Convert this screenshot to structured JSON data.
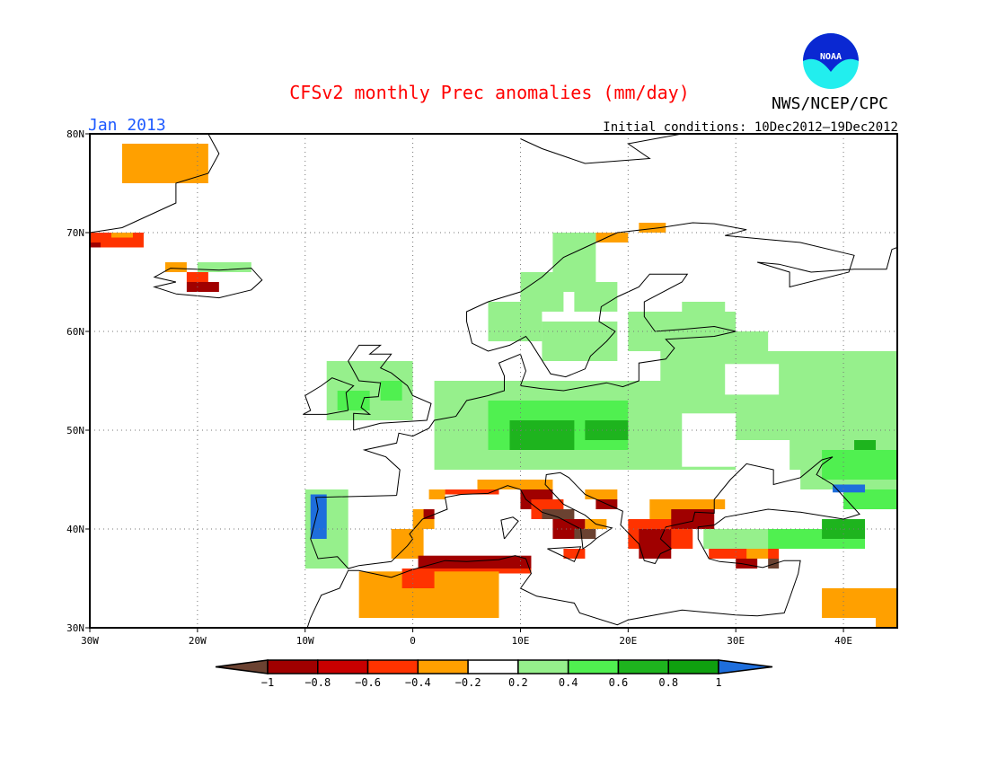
{
  "title": "CFSv2 monthly Prec anomalies (mm/day)",
  "month": "Jan 2013",
  "initial_conditions": "Initial conditions: 10Dec2012–19Dec2012",
  "agency": "NWS/NCEP/CPC",
  "logo_text": "NOAA",
  "colors": {
    "title": "#ff0000",
    "month": "#1e5aff"
  },
  "chart_data": {
    "type": "heatmap",
    "projection": "lat-lon",
    "lon_range": [
      -30,
      45
    ],
    "lat_range": [
      30,
      80
    ],
    "lat_ticks": [
      {
        "v": 80,
        "label": "80N"
      },
      {
        "v": 70,
        "label": "70N"
      },
      {
        "v": 60,
        "label": "60N"
      },
      {
        "v": 50,
        "label": "50N"
      },
      {
        "v": 40,
        "label": "40N"
      },
      {
        "v": 30,
        "label": "30N"
      }
    ],
    "lon_ticks": [
      {
        "v": -30,
        "label": "30W"
      },
      {
        "v": -20,
        "label": "20W"
      },
      {
        "v": -10,
        "label": "10W"
      },
      {
        "v": 0,
        "label": "0"
      },
      {
        "v": 10,
        "label": "10E"
      },
      {
        "v": 20,
        "label": "20E"
      },
      {
        "v": 30,
        "label": "30E"
      },
      {
        "v": 40,
        "label": "40E"
      }
    ],
    "colorbar": {
      "colors": [
        "#6b4231",
        "#a00000",
        "#c80000",
        "#ff3300",
        "#ffa000",
        "#ffffff",
        "#96f08c",
        "#50f050",
        "#1eb41e",
        "#0fa00f",
        "#1e6edc"
      ],
      "labels": [
        "−1",
        "−0.8",
        "−0.6",
        "−0.4",
        "−0.2",
        "0.2",
        "0.4",
        "0.6",
        "0.8",
        "1"
      ]
    },
    "patches_note": "each patch: [lon_min, lat_min, lon_max, lat_max, color_index]",
    "patches": [
      [
        -27,
        75,
        -19,
        79,
        4
      ],
      [
        -25,
        77,
        -22,
        78,
        4
      ],
      [
        -30,
        68.5,
        -25,
        70,
        3
      ],
      [
        -30,
        68.5,
        -29,
        69,
        1
      ],
      [
        -28,
        69.5,
        -26,
        70,
        4
      ],
      [
        -23,
        66,
        -21,
        67,
        4
      ],
      [
        -21,
        65,
        -19,
        66,
        3
      ],
      [
        -21,
        64,
        -18,
        65,
        1
      ],
      [
        -20,
        66,
        -15,
        67,
        6
      ],
      [
        17,
        69,
        20,
        70,
        4
      ],
      [
        21,
        70,
        23.5,
        71,
        4
      ],
      [
        7,
        59,
        12,
        63,
        6
      ],
      [
        10,
        62,
        14,
        66,
        6
      ],
      [
        13,
        64,
        17,
        70,
        6
      ],
      [
        15,
        62,
        19,
        65,
        6
      ],
      [
        12,
        57,
        19,
        61,
        6
      ],
      [
        20,
        58,
        30,
        62,
        6
      ],
      [
        25,
        62,
        29,
        63,
        6
      ],
      [
        23,
        55,
        45,
        58,
        6
      ],
      [
        25,
        58,
        33,
        60,
        6
      ],
      [
        23,
        46,
        45,
        55,
        6
      ],
      [
        29,
        53.6,
        34,
        56.7,
        5
      ],
      [
        24,
        46.3,
        30,
        51.7,
        5
      ],
      [
        30,
        46,
        35,
        49,
        5
      ],
      [
        2,
        46,
        25,
        55,
        6
      ],
      [
        7,
        48,
        20,
        53,
        7
      ],
      [
        9,
        48,
        15,
        51,
        8
      ],
      [
        16,
        49,
        20,
        51,
        8
      ],
      [
        -8,
        51,
        0,
        57,
        6
      ],
      [
        -7,
        52,
        -4,
        54,
        7
      ],
      [
        -3,
        53,
        -1,
        55,
        7
      ],
      [
        -10,
        36,
        -6,
        44,
        6
      ],
      [
        -9,
        40,
        -8,
        43,
        7
      ],
      [
        -9.5,
        39,
        -8,
        43.5,
        10
      ],
      [
        36,
        44,
        45,
        50,
        6
      ],
      [
        38,
        45,
        45,
        48,
        7
      ],
      [
        41,
        48,
        43,
        49,
        8
      ],
      [
        27,
        38,
        38,
        40,
        6
      ],
      [
        33,
        38,
        42,
        40,
        7
      ],
      [
        38,
        39,
        42,
        41,
        8
      ],
      [
        40,
        42,
        45,
        44,
        7
      ],
      [
        39,
        43.7,
        42,
        44.5,
        10
      ],
      [
        6,
        44,
        10,
        45,
        4
      ],
      [
        1.5,
        43,
        3,
        44,
        4
      ],
      [
        3,
        43.5,
        8,
        44,
        3
      ],
      [
        -2,
        37,
        1,
        40,
        4
      ],
      [
        0,
        40,
        2,
        42,
        4
      ],
      [
        1,
        41,
        2,
        42,
        1
      ],
      [
        10,
        44,
        13,
        45,
        4
      ],
      [
        10,
        42,
        13,
        44,
        1
      ],
      [
        11,
        41,
        14,
        43,
        3
      ],
      [
        12,
        41,
        15,
        42,
        0
      ],
      [
        13,
        39,
        16,
        41,
        1
      ],
      [
        15,
        39,
        17,
        40,
        0
      ],
      [
        16,
        40,
        18,
        41,
        4
      ],
      [
        14,
        37,
        16,
        38,
        3
      ],
      [
        16,
        43,
        19,
        44,
        4
      ],
      [
        17,
        42,
        19,
        43,
        1
      ],
      [
        20,
        38,
        26,
        41,
        3
      ],
      [
        21,
        37,
        24,
        40,
        1
      ],
      [
        22,
        41,
        27,
        43,
        4
      ],
      [
        24,
        40,
        28,
        42,
        1
      ],
      [
        25,
        42,
        29,
        43,
        4
      ],
      [
        27.5,
        37,
        34,
        38,
        3
      ],
      [
        30,
        36,
        32,
        37,
        1
      ],
      [
        33,
        36,
        34,
        37,
        0
      ],
      [
        31,
        37,
        33,
        38,
        4
      ],
      [
        0.5,
        36,
        11,
        37.3,
        1
      ],
      [
        0,
        35.5,
        11,
        36,
        3
      ],
      [
        -5,
        31,
        8,
        35.7,
        4
      ],
      [
        -1,
        34,
        2,
        36,
        3
      ],
      [
        38,
        31,
        45,
        34,
        4
      ],
      [
        43,
        30,
        45,
        32,
        4
      ]
    ]
  }
}
